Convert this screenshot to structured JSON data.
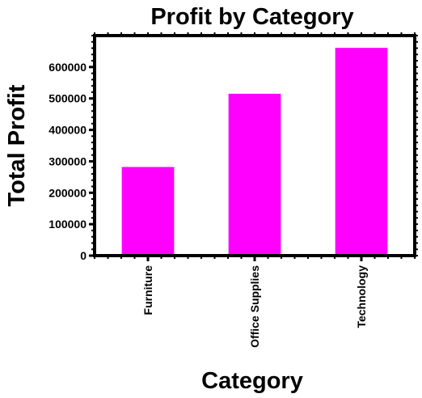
{
  "chart_data": {
    "type": "bar",
    "title": "Profit by Category",
    "xlabel": "Category",
    "ylabel": "Total Profit",
    "categories": [
      "Furniture",
      "Office Supplies",
      "Technology"
    ],
    "values": [
      282000,
      515000,
      661000
    ],
    "ylim": [
      0,
      700000
    ],
    "yticks": [
      0,
      100000,
      200000,
      300000,
      400000,
      500000,
      600000
    ],
    "ytick_labels": [
      "0",
      "100000",
      "200000",
      "300000",
      "400000",
      "500000",
      "600000"
    ],
    "bar_color": "#ff00ff",
    "grid": false
  }
}
